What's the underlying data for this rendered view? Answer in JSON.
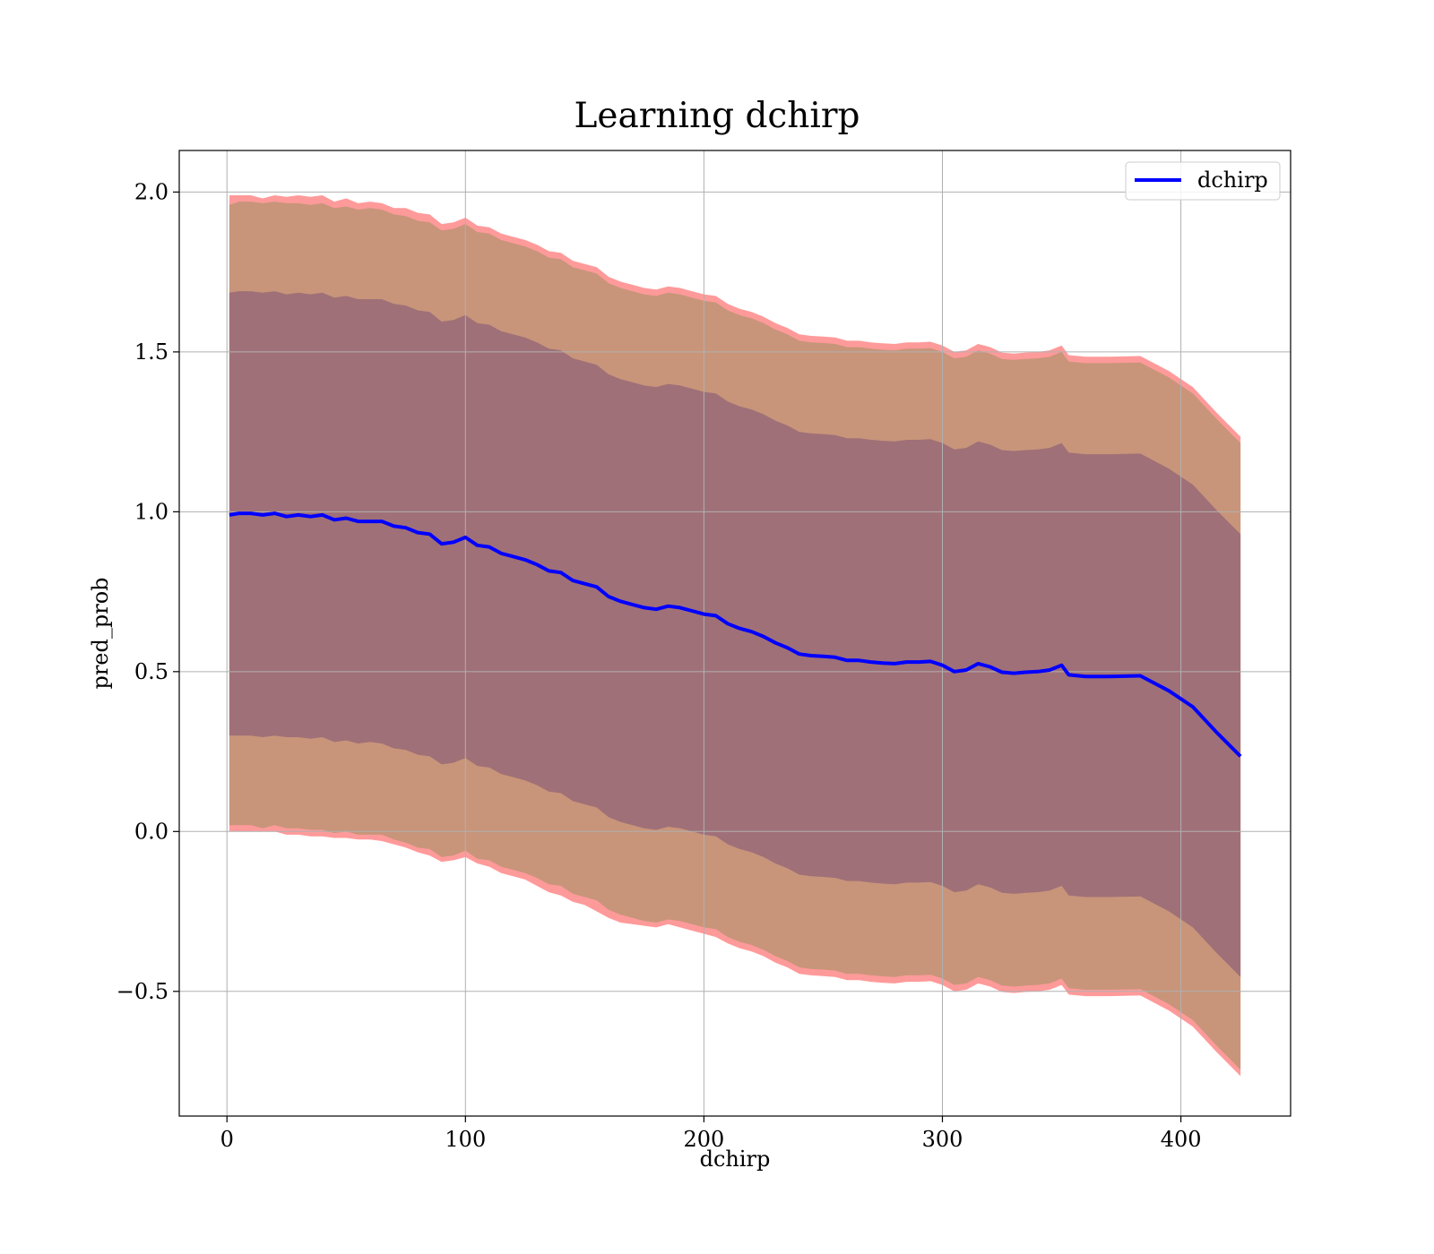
{
  "chart_data": {
    "type": "line",
    "title": "Learning dchirp",
    "xlabel": "dchirp",
    "ylabel": "pred_prob",
    "xlim": [
      -20,
      446
    ],
    "ylim": [
      -0.89,
      2.13
    ],
    "grid": true,
    "legend_position": "top-right",
    "x_ticks": [
      0,
      100,
      200,
      300,
      400
    ],
    "x_tick_labels": [
      "0",
      "100",
      "200",
      "300",
      "400"
    ],
    "y_ticks": [
      -0.5,
      0.0,
      0.5,
      1.0,
      1.5,
      2.0
    ],
    "y_tick_labels": [
      "−0.5",
      "0.0",
      "0.5",
      "1.0",
      "1.5",
      "2.0"
    ],
    "series": [
      {
        "name": "dchirp",
        "color": "#0000ff",
        "x": [
          1,
          5,
          10,
          15,
          20,
          25,
          30,
          35,
          40,
          45,
          50,
          55,
          60,
          65,
          70,
          75,
          80,
          85,
          90,
          95,
          100,
          105,
          110,
          115,
          120,
          125,
          130,
          135,
          140,
          145,
          150,
          155,
          160,
          165,
          170,
          175,
          180,
          185,
          190,
          195,
          200,
          205,
          210,
          215,
          220,
          225,
          230,
          235,
          240,
          245,
          250,
          255,
          260,
          265,
          270,
          275,
          280,
          285,
          290,
          295,
          300,
          305,
          310,
          315,
          320,
          325,
          330,
          335,
          340,
          345,
          350,
          353,
          360,
          370,
          383,
          395,
          405,
          415,
          425
        ],
        "y": [
          0.99,
          0.995,
          0.995,
          0.99,
          0.995,
          0.985,
          0.99,
          0.985,
          0.99,
          0.975,
          0.98,
          0.97,
          0.97,
          0.97,
          0.955,
          0.95,
          0.935,
          0.93,
          0.9,
          0.905,
          0.92,
          0.895,
          0.89,
          0.87,
          0.86,
          0.85,
          0.835,
          0.815,
          0.81,
          0.785,
          0.775,
          0.765,
          0.735,
          0.72,
          0.71,
          0.7,
          0.695,
          0.705,
          0.7,
          0.69,
          0.68,
          0.675,
          0.65,
          0.635,
          0.625,
          0.61,
          0.59,
          0.575,
          0.555,
          0.55,
          0.548,
          0.545,
          0.535,
          0.535,
          0.53,
          0.527,
          0.525,
          0.53,
          0.53,
          0.532,
          0.52,
          0.5,
          0.505,
          0.525,
          0.515,
          0.498,
          0.495,
          0.498,
          0.5,
          0.505,
          0.52,
          0.49,
          0.485,
          0.485,
          0.487,
          0.44,
          0.39,
          0.31,
          0.235
        ]
      }
    ],
    "bands": [
      {
        "description_color": "#ff9a9a",
        "lower": [
          0.0,
          0.0,
          0.0,
          0.0,
          0.0,
          -0.01,
          -0.01,
          -0.015,
          -0.015,
          -0.02,
          -0.02,
          -0.025,
          -0.025,
          -0.03,
          -0.04,
          -0.05,
          -0.065,
          -0.075,
          -0.095,
          -0.09,
          -0.08,
          -0.1,
          -0.11,
          -0.13,
          -0.14,
          -0.15,
          -0.17,
          -0.19,
          -0.2,
          -0.22,
          -0.23,
          -0.25,
          -0.27,
          -0.285,
          -0.29,
          -0.295,
          -0.3,
          -0.29,
          -0.3,
          -0.31,
          -0.32,
          -0.33,
          -0.35,
          -0.365,
          -0.375,
          -0.39,
          -0.41,
          -0.425,
          -0.445,
          -0.45,
          -0.452,
          -0.455,
          -0.465,
          -0.465,
          -0.47,
          -0.473,
          -0.475,
          -0.47,
          -0.47,
          -0.468,
          -0.48,
          -0.5,
          -0.495,
          -0.475,
          -0.485,
          -0.502,
          -0.505,
          -0.502,
          -0.5,
          -0.495,
          -0.48,
          -0.51,
          -0.515,
          -0.515,
          -0.513,
          -0.56,
          -0.61,
          -0.69,
          -0.765
        ],
        "upper": [
          1.99,
          1.99,
          1.99,
          1.98,
          1.99,
          1.985,
          1.99,
          1.985,
          1.99,
          1.97,
          1.98,
          1.965,
          1.97,
          1.965,
          1.95,
          1.95,
          1.935,
          1.93,
          1.9,
          1.905,
          1.92,
          1.895,
          1.89,
          1.87,
          1.86,
          1.85,
          1.835,
          1.815,
          1.81,
          1.785,
          1.775,
          1.765,
          1.735,
          1.72,
          1.71,
          1.7,
          1.695,
          1.705,
          1.7,
          1.69,
          1.68,
          1.675,
          1.65,
          1.635,
          1.625,
          1.61,
          1.59,
          1.575,
          1.555,
          1.55,
          1.548,
          1.545,
          1.535,
          1.535,
          1.53,
          1.527,
          1.525,
          1.53,
          1.53,
          1.532,
          1.52,
          1.5,
          1.505,
          1.525,
          1.515,
          1.498,
          1.495,
          1.498,
          1.5,
          1.505,
          1.52,
          1.49,
          1.485,
          1.485,
          1.487,
          1.44,
          1.39,
          1.31,
          1.235
        ]
      },
      {
        "description_color": "#c8957a",
        "lower": [
          0.02,
          0.02,
          0.02,
          0.01,
          0.02,
          0.01,
          0.01,
          0.005,
          0.005,
          -0.005,
          0.0,
          -0.01,
          -0.01,
          -0.01,
          -0.025,
          -0.035,
          -0.05,
          -0.055,
          -0.08,
          -0.075,
          -0.06,
          -0.085,
          -0.09,
          -0.11,
          -0.12,
          -0.13,
          -0.145,
          -0.165,
          -0.17,
          -0.195,
          -0.205,
          -0.215,
          -0.245,
          -0.26,
          -0.27,
          -0.28,
          -0.285,
          -0.275,
          -0.28,
          -0.29,
          -0.3,
          -0.305,
          -0.33,
          -0.345,
          -0.355,
          -0.37,
          -0.39,
          -0.405,
          -0.425,
          -0.43,
          -0.432,
          -0.435,
          -0.445,
          -0.445,
          -0.45,
          -0.453,
          -0.455,
          -0.45,
          -0.45,
          -0.448,
          -0.46,
          -0.48,
          -0.475,
          -0.455,
          -0.465,
          -0.482,
          -0.485,
          -0.482,
          -0.48,
          -0.475,
          -0.46,
          -0.49,
          -0.495,
          -0.495,
          -0.493,
          -0.54,
          -0.59,
          -0.67,
          -0.745
        ],
        "upper": [
          1.96,
          1.97,
          1.97,
          1.965,
          1.97,
          1.965,
          1.965,
          1.96,
          1.965,
          1.95,
          1.955,
          1.945,
          1.95,
          1.945,
          1.93,
          1.925,
          1.91,
          1.905,
          1.88,
          1.885,
          1.9,
          1.875,
          1.87,
          1.85,
          1.84,
          1.83,
          1.815,
          1.795,
          1.79,
          1.765,
          1.755,
          1.745,
          1.715,
          1.7,
          1.69,
          1.68,
          1.675,
          1.685,
          1.68,
          1.67,
          1.66,
          1.655,
          1.63,
          1.615,
          1.605,
          1.59,
          1.57,
          1.555,
          1.535,
          1.53,
          1.528,
          1.525,
          1.515,
          1.515,
          1.51,
          1.507,
          1.505,
          1.51,
          1.51,
          1.512,
          1.5,
          1.48,
          1.485,
          1.505,
          1.495,
          1.478,
          1.475,
          1.478,
          1.48,
          1.485,
          1.5,
          1.47,
          1.465,
          1.465,
          1.467,
          1.42,
          1.37,
          1.29,
          1.215
        ]
      },
      {
        "description_color": "#a07078",
        "lower": [
          0.3,
          0.3,
          0.3,
          0.295,
          0.3,
          0.295,
          0.295,
          0.29,
          0.295,
          0.28,
          0.285,
          0.275,
          0.28,
          0.275,
          0.26,
          0.255,
          0.24,
          0.235,
          0.21,
          0.215,
          0.23,
          0.205,
          0.2,
          0.18,
          0.17,
          0.16,
          0.145,
          0.125,
          0.12,
          0.095,
          0.085,
          0.075,
          0.045,
          0.03,
          0.02,
          0.01,
          0.005,
          0.015,
          0.01,
          0.0,
          -0.01,
          -0.015,
          -0.04,
          -0.055,
          -0.065,
          -0.08,
          -0.1,
          -0.115,
          -0.135,
          -0.14,
          -0.142,
          -0.145,
          -0.155,
          -0.155,
          -0.16,
          -0.163,
          -0.165,
          -0.16,
          -0.16,
          -0.158,
          -0.17,
          -0.19,
          -0.185,
          -0.165,
          -0.175,
          -0.192,
          -0.195,
          -0.192,
          -0.19,
          -0.185,
          -0.17,
          -0.2,
          -0.205,
          -0.205,
          -0.203,
          -0.25,
          -0.3,
          -0.38,
          -0.455
        ],
        "upper": [
          1.685,
          1.69,
          1.69,
          1.685,
          1.69,
          1.68,
          1.685,
          1.68,
          1.685,
          1.67,
          1.675,
          1.665,
          1.665,
          1.665,
          1.65,
          1.645,
          1.63,
          1.625,
          1.595,
          1.6,
          1.615,
          1.59,
          1.585,
          1.565,
          1.555,
          1.545,
          1.53,
          1.51,
          1.505,
          1.48,
          1.47,
          1.46,
          1.43,
          1.415,
          1.405,
          1.395,
          1.39,
          1.4,
          1.395,
          1.385,
          1.375,
          1.37,
          1.345,
          1.33,
          1.32,
          1.305,
          1.285,
          1.27,
          1.25,
          1.245,
          1.243,
          1.24,
          1.23,
          1.23,
          1.225,
          1.222,
          1.22,
          1.225,
          1.225,
          1.227,
          1.215,
          1.195,
          1.2,
          1.22,
          1.21,
          1.193,
          1.19,
          1.193,
          1.195,
          1.2,
          1.215,
          1.185,
          1.18,
          1.18,
          1.182,
          1.135,
          1.085,
          1.005,
          0.93
        ]
      }
    ]
  }
}
